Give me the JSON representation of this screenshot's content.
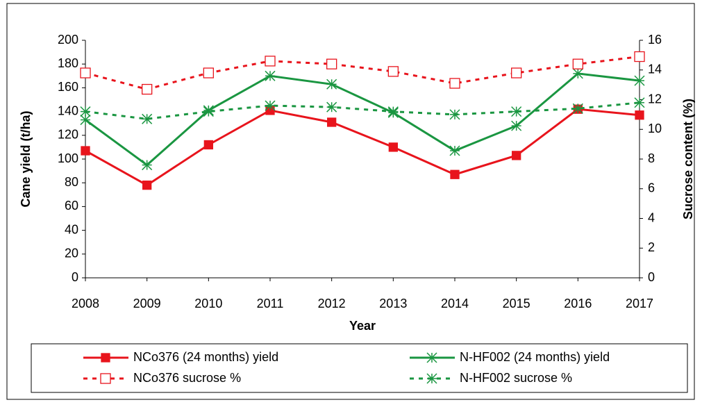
{
  "chart_data": {
    "type": "line",
    "categories": [
      "2008",
      "2009",
      "2010",
      "2011",
      "2012",
      "2013",
      "2014",
      "2015",
      "2016",
      "2017"
    ],
    "x_label": "Year",
    "y_label": "Cane yield (t/ha)",
    "y2_label": "Sucrose content (%)",
    "ylim": [
      0,
      200
    ],
    "yticks": [
      0,
      20,
      40,
      60,
      80,
      100,
      120,
      140,
      160,
      180,
      200
    ],
    "y2lim": [
      0,
      16
    ],
    "y2ticks": [
      0,
      2,
      4,
      6,
      8,
      10,
      12,
      14,
      16
    ],
    "series": [
      {
        "name": "NCo376 (24 months) yield",
        "color": "#e8141c",
        "marker": "square",
        "dash": false,
        "values": [
          107,
          78,
          112,
          141,
          131,
          110,
          87,
          103,
          142,
          137
        ]
      },
      {
        "name": "N-HF002 (24 months) yield",
        "color": "#1a9641",
        "marker": "star",
        "dash": false,
        "values": [
          133,
          95,
          141,
          170,
          163,
          139,
          107,
          128,
          172,
          166
        ]
      },
      {
        "name": "NCo376 sucrose %",
        "color": "#e8141c",
        "marker": "open-square",
        "dash": true,
        "axis": "y2",
        "values": [
          13.8,
          12.7,
          13.8,
          14.6,
          14.4,
          13.9,
          13.1,
          13.8,
          14.4,
          14.9
        ]
      },
      {
        "name": "N-HF002 sucrose %",
        "color": "#1a9641",
        "marker": "star",
        "dash": true,
        "axis": "y2",
        "values": [
          11.2,
          10.7,
          11.2,
          11.6,
          11.5,
          11.2,
          11.0,
          11.2,
          11.4,
          11.8
        ]
      }
    ]
  }
}
